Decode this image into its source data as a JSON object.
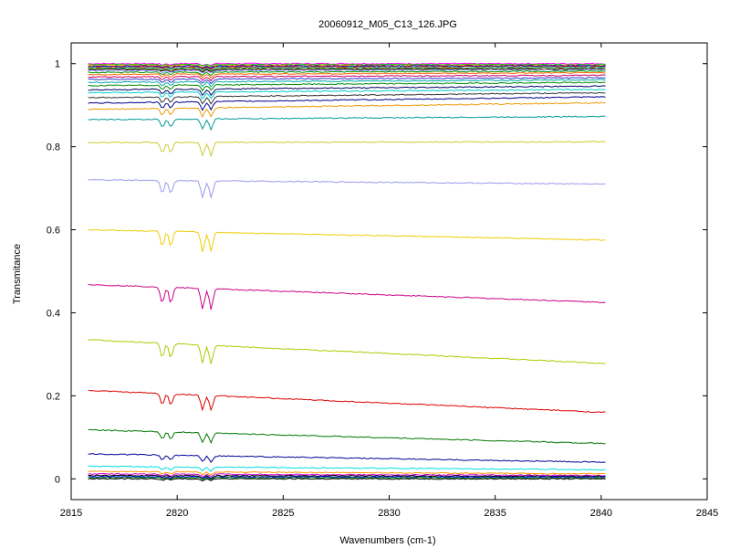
{
  "chart_data": {
    "type": "line",
    "title": "20060912_M05_C13_126.JPG",
    "xlabel": "Wavenumbers (cm-1)",
    "ylabel": "Transmitance",
    "xlim": [
      2815,
      2845
    ],
    "ylim": [
      -0.05,
      1.05
    ],
    "xticks": [
      2815,
      2820,
      2825,
      2830,
      2835,
      2840,
      2845
    ],
    "yticks": [
      0,
      0.2,
      0.4,
      0.6,
      0.8,
      1
    ],
    "ytick_labels": [
      "0",
      "0.2",
      "0.4",
      "0.6",
      "0.8",
      "1"
    ],
    "x_range_of_data": [
      2815.8,
      2840.2
    ],
    "absorption_lines_x": [
      2819.3,
      2819.7,
      2821.2,
      2821.6
    ],
    "grid": false,
    "legend": "none",
    "series": [
      {
        "color": "#ff00ff",
        "start": 1.0,
        "end": 1.0
      },
      {
        "color": "#00cc00",
        "start": 0.998,
        "end": 0.998
      },
      {
        "color": "#ff9900",
        "start": 0.996,
        "end": 0.996
      },
      {
        "color": "#0000cc",
        "start": 0.994,
        "end": 0.995
      },
      {
        "color": "#cc0000",
        "start": 0.992,
        "end": 0.993
      },
      {
        "color": "#00cccc",
        "start": 0.99,
        "end": 0.991
      },
      {
        "color": "#999900",
        "start": 0.988,
        "end": 0.989
      },
      {
        "color": "#000000",
        "start": 0.986,
        "end": 0.987
      },
      {
        "color": "#9999ff",
        "start": 0.983,
        "end": 0.985
      },
      {
        "color": "#009900",
        "start": 0.979,
        "end": 0.982
      },
      {
        "color": "#ff6600",
        "start": 0.974,
        "end": 0.978
      },
      {
        "color": "#cc0066",
        "start": 0.968,
        "end": 0.972
      },
      {
        "color": "#3333cc",
        "start": 0.962,
        "end": 0.966
      },
      {
        "color": "#00aaaa",
        "start": 0.955,
        "end": 0.961
      },
      {
        "color": "#008800",
        "start": 0.947,
        "end": 0.955
      },
      {
        "color": "#000066",
        "start": 0.937,
        "end": 0.946
      },
      {
        "color": "#00cccc",
        "start": 0.93,
        "end": 0.938
      },
      {
        "color": "#333333",
        "start": 0.918,
        "end": 0.93
      },
      {
        "color": "#000088",
        "start": 0.905,
        "end": 0.92
      },
      {
        "color": "#ee9900",
        "start": 0.89,
        "end": 0.906
      },
      {
        "color": "#009999",
        "start": 0.865,
        "end": 0.873
      },
      {
        "color": "#cccc33",
        "start": 0.81,
        "end": 0.812
      },
      {
        "color": "#9999ee",
        "start": 0.72,
        "end": 0.71
      },
      {
        "color": "#eecc00",
        "start": 0.6,
        "end": 0.575
      },
      {
        "color": "#cc0088",
        "start": 0.468,
        "end": 0.425
      },
      {
        "color": "#aacc00",
        "start": 0.335,
        "end": 0.278
      },
      {
        "color": "#dd0000",
        "start": 0.213,
        "end": 0.16
      },
      {
        "color": "#007700",
        "start": 0.118,
        "end": 0.085
      },
      {
        "color": "#000099",
        "start": 0.06,
        "end": 0.04
      },
      {
        "color": "#00dddd",
        "start": 0.03,
        "end": 0.022
      },
      {
        "color": "#ff9900",
        "start": 0.018,
        "end": 0.012
      },
      {
        "color": "#cc00cc",
        "start": 0.012,
        "end": 0.008
      },
      {
        "color": "#000000",
        "start": 0.008,
        "end": 0.006
      },
      {
        "color": "#0000ff",
        "start": 0.005,
        "end": 0.004
      },
      {
        "color": "#009900",
        "start": 0.003,
        "end": 0.002
      },
      {
        "color": "#000000",
        "start": 0.0,
        "end": 0.0
      }
    ]
  }
}
